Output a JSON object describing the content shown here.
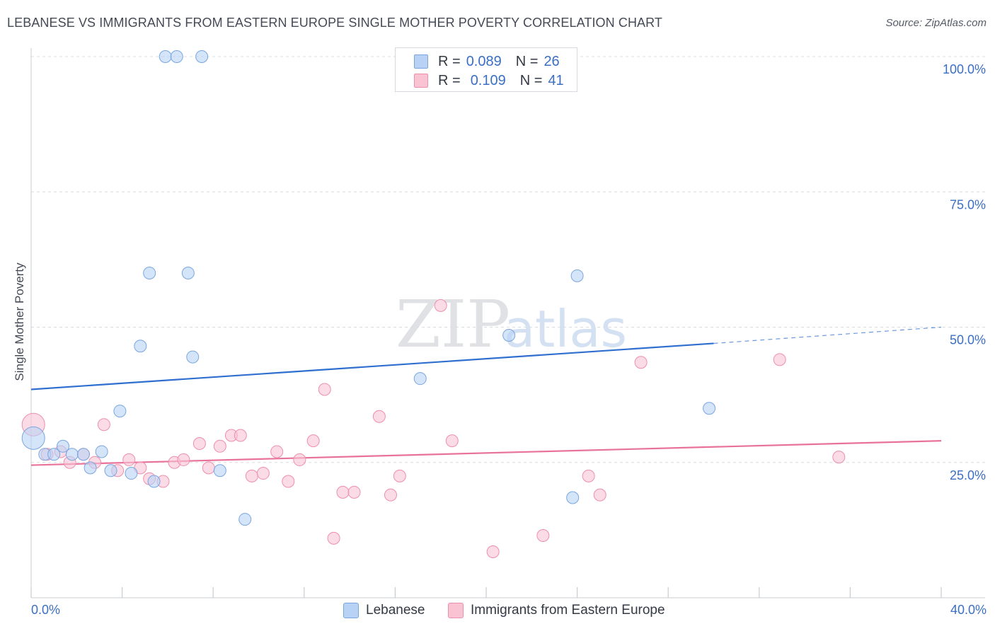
{
  "title": "LEBANESE VS IMMIGRANTS FROM EASTERN EUROPE SINGLE MOTHER POVERTY CORRELATION CHART",
  "source": "Source: ZipAtlas.com",
  "watermark": {
    "zip": "ZIP",
    "atlas": "atlas"
  },
  "legend_top": {
    "series": [
      {
        "r_label": "R =",
        "r_value": "0.089",
        "n_label": "N =",
        "n_value": "26"
      },
      {
        "r_label": "R =",
        "r_value": "0.109",
        "n_label": "N =",
        "n_value": "41"
      }
    ]
  },
  "colors": {
    "blue_fill": "#b8d2f5",
    "blue_stroke": "#7aa6e0",
    "blue_line": "#2f6fd0",
    "pink_fill": "#f9c3d3",
    "pink_stroke": "#ee8fac",
    "pink_line": "#e8729a",
    "axis_text": "#3a6fc4",
    "grid": "#d9dde3"
  },
  "chart_data": {
    "type": "scatter",
    "title": "LEBANESE VS IMMIGRANTS FROM EASTERN EUROPE SINGLE MOTHER POVERTY CORRELATION CHART",
    "xlabel": "",
    "ylabel": "Single Mother Poverty",
    "xlim": [
      0,
      40
    ],
    "ylim": [
      0,
      100
    ],
    "x_tick_labels": [
      "0.0%",
      "40.0%"
    ],
    "y_tick_labels": [
      "25.0%",
      "50.0%",
      "75.0%",
      "100.0%"
    ],
    "y_ticks": [
      25,
      50,
      75,
      100
    ],
    "grid": true,
    "legend_position": "bottom",
    "series": [
      {
        "name": "Lebanese",
        "R": 0.089,
        "N": 26,
        "trend": {
          "x0": 0,
          "y0": 38.5,
          "x1": 30,
          "y1": 47.0,
          "dashed_to_x": 40,
          "dashed_to_y": 50.0
        },
        "points": [
          {
            "x": 0.1,
            "y": 29.5,
            "size": "large"
          },
          {
            "x": 0.6,
            "y": 26.5
          },
          {
            "x": 1.0,
            "y": 26.5
          },
          {
            "x": 1.4,
            "y": 28.0
          },
          {
            "x": 1.8,
            "y": 26.5
          },
          {
            "x": 2.3,
            "y": 26.5
          },
          {
            "x": 2.6,
            "y": 24.0
          },
          {
            "x": 3.1,
            "y": 27.0
          },
          {
            "x": 3.5,
            "y": 23.5
          },
          {
            "x": 3.9,
            "y": 34.5
          },
          {
            "x": 4.4,
            "y": 23.0
          },
          {
            "x": 4.8,
            "y": 46.5
          },
          {
            "x": 5.2,
            "y": 60.0
          },
          {
            "x": 5.4,
            "y": 21.5
          },
          {
            "x": 5.9,
            "y": 100.0
          },
          {
            "x": 6.4,
            "y": 100.0
          },
          {
            "x": 6.9,
            "y": 60.0
          },
          {
            "x": 7.1,
            "y": 44.5
          },
          {
            "x": 7.5,
            "y": 100.0
          },
          {
            "x": 8.3,
            "y": 23.5
          },
          {
            "x": 9.4,
            "y": 14.5
          },
          {
            "x": 17.1,
            "y": 40.5
          },
          {
            "x": 21.0,
            "y": 48.5
          },
          {
            "x": 23.8,
            "y": 18.5
          },
          {
            "x": 24.0,
            "y": 59.5
          },
          {
            "x": 29.8,
            "y": 35.0
          }
        ]
      },
      {
        "name": "Immigrants from Eastern Europe",
        "R": 0.109,
        "N": 41,
        "trend": {
          "x0": 0,
          "y0": 24.5,
          "x1": 40,
          "y1": 29.0
        },
        "points": [
          {
            "x": 0.1,
            "y": 32.0,
            "size": "large"
          },
          {
            "x": 0.7,
            "y": 26.5
          },
          {
            "x": 1.3,
            "y": 27.0
          },
          {
            "x": 1.7,
            "y": 25.0
          },
          {
            "x": 2.3,
            "y": 26.5
          },
          {
            "x": 2.8,
            "y": 25.0
          },
          {
            "x": 3.2,
            "y": 32.0
          },
          {
            "x": 3.8,
            "y": 23.5
          },
          {
            "x": 4.3,
            "y": 25.5
          },
          {
            "x": 4.8,
            "y": 24.0
          },
          {
            "x": 5.2,
            "y": 22.0
          },
          {
            "x": 5.8,
            "y": 21.5
          },
          {
            "x": 6.3,
            "y": 25.0
          },
          {
            "x": 6.7,
            "y": 25.5
          },
          {
            "x": 7.4,
            "y": 28.5
          },
          {
            "x": 7.8,
            "y": 24.0
          },
          {
            "x": 8.3,
            "y": 28.0
          },
          {
            "x": 8.8,
            "y": 30.0
          },
          {
            "x": 9.2,
            "y": 30.0
          },
          {
            "x": 9.7,
            "y": 22.5
          },
          {
            "x": 10.2,
            "y": 23.0
          },
          {
            "x": 10.8,
            "y": 27.0
          },
          {
            "x": 11.3,
            "y": 21.5
          },
          {
            "x": 11.8,
            "y": 25.5
          },
          {
            "x": 12.4,
            "y": 29.0
          },
          {
            "x": 12.9,
            "y": 38.5
          },
          {
            "x": 13.3,
            "y": 11.0
          },
          {
            "x": 13.7,
            "y": 19.5
          },
          {
            "x": 14.2,
            "y": 19.5
          },
          {
            "x": 15.3,
            "y": 33.5
          },
          {
            "x": 15.8,
            "y": 19.0
          },
          {
            "x": 16.2,
            "y": 22.5
          },
          {
            "x": 18.0,
            "y": 54.0
          },
          {
            "x": 18.5,
            "y": 29.0
          },
          {
            "x": 20.3,
            "y": 8.5
          },
          {
            "x": 22.5,
            "y": 11.5
          },
          {
            "x": 24.5,
            "y": 22.5
          },
          {
            "x": 25.0,
            "y": 19.0
          },
          {
            "x": 26.8,
            "y": 43.5
          },
          {
            "x": 32.9,
            "y": 44.0
          },
          {
            "x": 35.5,
            "y": 26.0
          }
        ]
      }
    ]
  },
  "legend_bottom": [
    {
      "label": "Lebanese"
    },
    {
      "label": "Immigrants from Eastern Europe"
    }
  ]
}
